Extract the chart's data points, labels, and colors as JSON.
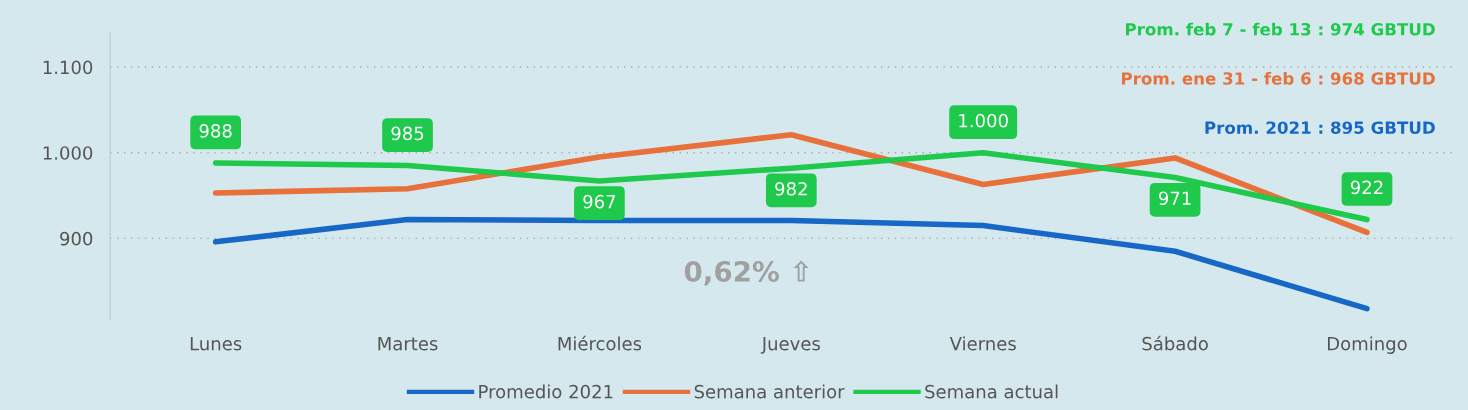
{
  "chart_data": {
    "type": "line",
    "categories": [
      "Lunes",
      "Martes",
      "Miércoles",
      "Jueves",
      "Viernes",
      "Sábado",
      "Domingo"
    ],
    "series": [
      {
        "name": "Promedio 2021",
        "color": "#1767c6",
        "values": [
          896,
          922,
          921,
          921,
          915,
          885,
          818
        ]
      },
      {
        "name": "Semana anterior",
        "color": "#e8703a",
        "values": [
          953,
          958,
          995,
          1021,
          963,
          994,
          907
        ]
      },
      {
        "name": "Semana actual",
        "color": "#1ec94c",
        "values": [
          988,
          985,
          967,
          982,
          1000,
          971,
          922
        ],
        "value_labels": [
          "988",
          "985",
          "967",
          "982",
          "1.000",
          "971",
          "922"
        ]
      }
    ],
    "ylim": [
      805,
      1140
    ],
    "yticks": [
      {
        "value": 900,
        "label": "900"
      },
      {
        "value": 1000,
        "label": "1.000"
      },
      {
        "value": 1100,
        "label": "1.100"
      }
    ],
    "grid": "y",
    "legend": "bottom",
    "marker": "none",
    "line_style": "solid",
    "annotations": [
      "Prom. feb 7 - feb 13 : 974 GBTUD",
      "Prom. ene 31 - feb 6 : 968 GBTUD",
      "Prom. 2021 : 895 GBTUD",
      "0,62% ⇧"
    ]
  }
}
